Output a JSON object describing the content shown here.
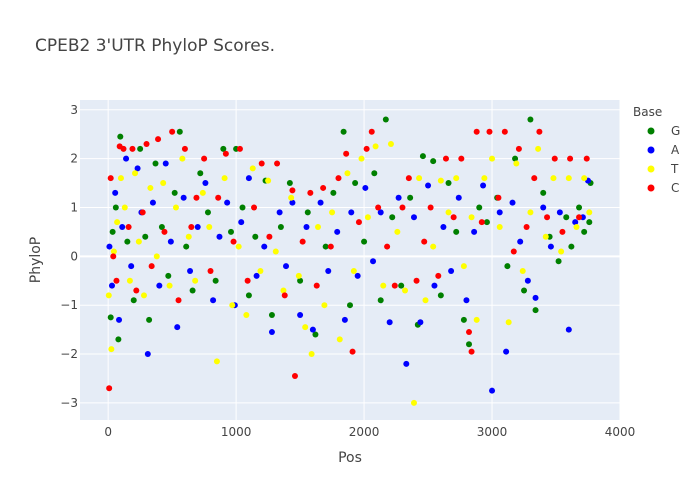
{
  "chart_data": {
    "type": "scatter",
    "title": "CPEB2 3'UTR PhyloP Scores.",
    "xlabel": "Pos",
    "ylabel": "PhyloP",
    "xlim": [
      -220,
      4000
    ],
    "ylim": [
      -3.35,
      3.2
    ],
    "x_ticks": [
      0,
      1000,
      2000,
      3000,
      4000
    ],
    "x_tick_labels": [
      "0",
      "1000",
      "2000",
      "3000",
      "4000"
    ],
    "y_ticks": [
      -3,
      -2,
      -1,
      0,
      1,
      2,
      3
    ],
    "y_tick_labels": [
      "−3",
      "−2",
      "−1",
      "0",
      "1",
      "2",
      "3"
    ],
    "grid": true,
    "plot_background": "#e5ecf6",
    "legend": {
      "title": "Base",
      "position": "right"
    },
    "series": [
      {
        "name": "G",
        "color": "#008000",
        "points": [
          [
            20,
            -1.25
          ],
          [
            35,
            0.5
          ],
          [
            60,
            1.0
          ],
          [
            80,
            -1.7
          ],
          [
            95,
            2.45
          ],
          [
            150,
            0.3
          ],
          [
            200,
            -0.9
          ],
          [
            250,
            2.2
          ],
          [
            290,
            0.4
          ],
          [
            320,
            -1.3
          ],
          [
            370,
            1.9
          ],
          [
            420,
            0.6
          ],
          [
            470,
            -0.4
          ],
          [
            520,
            1.3
          ],
          [
            560,
            2.55
          ],
          [
            610,
            0.2
          ],
          [
            660,
            -0.7
          ],
          [
            720,
            1.7
          ],
          [
            780,
            0.9
          ],
          [
            840,
            -0.5
          ],
          [
            900,
            2.2
          ],
          [
            960,
            0.5
          ],
          [
            1000,
            2.2
          ],
          [
            1050,
            1.0
          ],
          [
            1100,
            -0.8
          ],
          [
            1150,
            0.4
          ],
          [
            1230,
            1.55
          ],
          [
            1280,
            -1.2
          ],
          [
            1350,
            0.6
          ],
          [
            1420,
            1.5
          ],
          [
            1500,
            -0.5
          ],
          [
            1560,
            0.9
          ],
          [
            1620,
            -1.6
          ],
          [
            1700,
            0.2
          ],
          [
            1760,
            1.3
          ],
          [
            1840,
            2.55
          ],
          [
            1890,
            -1.0
          ],
          [
            1930,
            1.5
          ],
          [
            2000,
            0.3
          ],
          [
            2080,
            1.7
          ],
          [
            2130,
            -0.9
          ],
          [
            2170,
            2.8
          ],
          [
            2220,
            0.8
          ],
          [
            2290,
            -0.6
          ],
          [
            2360,
            1.2
          ],
          [
            2420,
            -1.4
          ],
          [
            2460,
            2.05
          ],
          [
            2540,
            1.95
          ],
          [
            2600,
            -0.8
          ],
          [
            2660,
            1.5
          ],
          [
            2720,
            0.5
          ],
          [
            2780,
            -1.3
          ],
          [
            2820,
            -1.8
          ],
          [
            2900,
            1.0
          ],
          [
            2960,
            0.7
          ],
          [
            3040,
            1.2
          ],
          [
            3120,
            -0.2
          ],
          [
            3180,
            2.0
          ],
          [
            3250,
            -0.7
          ],
          [
            3300,
            2.8
          ],
          [
            3340,
            -1.1
          ],
          [
            3400,
            1.3
          ],
          [
            3450,
            0.4
          ],
          [
            3520,
            -0.1
          ],
          [
            3580,
            0.8
          ],
          [
            3620,
            0.2
          ],
          [
            3680,
            1.0
          ],
          [
            3720,
            0.5
          ],
          [
            3760,
            0.7
          ],
          [
            3770,
            1.5
          ]
        ]
      },
      {
        "name": "A",
        "color": "#0000ff",
        "points": [
          [
            10,
            0.2
          ],
          [
            30,
            -0.6
          ],
          [
            55,
            1.3
          ],
          [
            85,
            -1.3
          ],
          [
            110,
            0.6
          ],
          [
            140,
            2.0
          ],
          [
            180,
            -0.2
          ],
          [
            230,
            1.8
          ],
          [
            260,
            0.9
          ],
          [
            310,
            -2.0
          ],
          [
            350,
            1.1
          ],
          [
            400,
            -0.6
          ],
          [
            450,
            1.9
          ],
          [
            490,
            0.3
          ],
          [
            540,
            -1.45
          ],
          [
            590,
            1.2
          ],
          [
            640,
            -0.3
          ],
          [
            700,
            0.6
          ],
          [
            760,
            1.5
          ],
          [
            820,
            -0.9
          ],
          [
            870,
            0.4
          ],
          [
            930,
            1.1
          ],
          [
            990,
            -1.0
          ],
          [
            1040,
            0.7
          ],
          [
            1100,
            1.6
          ],
          [
            1160,
            -0.4
          ],
          [
            1220,
            0.2
          ],
          [
            1280,
            -1.55
          ],
          [
            1340,
            0.9
          ],
          [
            1390,
            -0.2
          ],
          [
            1440,
            1.1
          ],
          [
            1500,
            -1.2
          ],
          [
            1550,
            0.6
          ],
          [
            1600,
            -1.5
          ],
          [
            1660,
            1.1
          ],
          [
            1720,
            -0.3
          ],
          [
            1790,
            0.5
          ],
          [
            1850,
            -1.3
          ],
          [
            1900,
            0.9
          ],
          [
            1950,
            -0.4
          ],
          [
            2010,
            1.4
          ],
          [
            2070,
            -0.1
          ],
          [
            2130,
            0.9
          ],
          [
            2200,
            -1.35
          ],
          [
            2270,
            1.2
          ],
          [
            2330,
            -2.2
          ],
          [
            2390,
            0.8
          ],
          [
            2440,
            -1.35
          ],
          [
            2500,
            1.45
          ],
          [
            2550,
            -0.6
          ],
          [
            2620,
            0.6
          ],
          [
            2680,
            -0.3
          ],
          [
            2740,
            1.2
          ],
          [
            2800,
            -0.9
          ],
          [
            2860,
            0.5
          ],
          [
            2930,
            1.45
          ],
          [
            3000,
            -2.75
          ],
          [
            3060,
            0.9
          ],
          [
            3110,
            -1.95
          ],
          [
            3160,
            1.1
          ],
          [
            3220,
            0.3
          ],
          [
            3280,
            -0.5
          ],
          [
            3340,
            -0.85
          ],
          [
            3400,
            1.0
          ],
          [
            3460,
            0.2
          ],
          [
            3530,
            0.9
          ],
          [
            3600,
            -1.5
          ],
          [
            3650,
            0.7
          ],
          [
            3710,
            0.8
          ],
          [
            3750,
            1.55
          ]
        ]
      },
      {
        "name": "T",
        "color": "#ffff00",
        "points": [
          [
            5,
            -0.8
          ],
          [
            25,
            -1.9
          ],
          [
            45,
            0.1
          ],
          [
            70,
            0.7
          ],
          [
            100,
            1.6
          ],
          [
            130,
            1.0
          ],
          [
            170,
            -0.5
          ],
          [
            210,
            1.7
          ],
          [
            240,
            0.3
          ],
          [
            280,
            -0.8
          ],
          [
            330,
            1.4
          ],
          [
            380,
            0.0
          ],
          [
            430,
            1.5
          ],
          [
            480,
            -0.6
          ],
          [
            530,
            1.0
          ],
          [
            580,
            2.0
          ],
          [
            630,
            0.4
          ],
          [
            680,
            -0.5
          ],
          [
            740,
            1.3
          ],
          [
            790,
            0.6
          ],
          [
            850,
            -2.15
          ],
          [
            910,
            1.6
          ],
          [
            970,
            -1.0
          ],
          [
            1020,
            0.2
          ],
          [
            1080,
            -1.2
          ],
          [
            1130,
            1.8
          ],
          [
            1190,
            -0.3
          ],
          [
            1250,
            1.55
          ],
          [
            1310,
            0.1
          ],
          [
            1370,
            -0.7
          ],
          [
            1430,
            1.2
          ],
          [
            1490,
            -0.4
          ],
          [
            1540,
            -1.45
          ],
          [
            1590,
            -2.0
          ],
          [
            1640,
            0.6
          ],
          [
            1690,
            -1.0
          ],
          [
            1750,
            0.9
          ],
          [
            1810,
            -1.7
          ],
          [
            1870,
            1.7
          ],
          [
            1920,
            -0.3
          ],
          [
            1980,
            2.0
          ],
          [
            2030,
            0.8
          ],
          [
            2090,
            2.25
          ],
          [
            2150,
            -0.6
          ],
          [
            2210,
            2.3
          ],
          [
            2260,
            0.5
          ],
          [
            2320,
            -0.7
          ],
          [
            2390,
            -3.0
          ],
          [
            2430,
            1.6
          ],
          [
            2480,
            -0.9
          ],
          [
            2540,
            0.2
          ],
          [
            2600,
            1.55
          ],
          [
            2660,
            0.9
          ],
          [
            2720,
            1.6
          ],
          [
            2780,
            -0.2
          ],
          [
            2840,
            0.8
          ],
          [
            2880,
            -1.3
          ],
          [
            2940,
            1.6
          ],
          [
            3000,
            2.0
          ],
          [
            3060,
            0.6
          ],
          [
            3130,
            -1.35
          ],
          [
            3190,
            1.9
          ],
          [
            3240,
            -0.3
          ],
          [
            3300,
            0.9
          ],
          [
            3360,
            2.2
          ],
          [
            3420,
            0.4
          ],
          [
            3480,
            1.6
          ],
          [
            3540,
            0.1
          ],
          [
            3600,
            1.6
          ],
          [
            3660,
            0.6
          ],
          [
            3720,
            1.6
          ],
          [
            3760,
            0.9
          ]
        ]
      },
      {
        "name": "C",
        "color": "#ff0000",
        "points": [
          [
            8,
            -2.7
          ],
          [
            20,
            1.6
          ],
          [
            40,
            0.0
          ],
          [
            65,
            -0.5
          ],
          [
            90,
            2.25
          ],
          [
            120,
            2.2
          ],
          [
            160,
            0.6
          ],
          [
            190,
            2.2
          ],
          [
            220,
            -0.7
          ],
          [
            270,
            0.9
          ],
          [
            300,
            2.3
          ],
          [
            340,
            -0.2
          ],
          [
            390,
            2.4
          ],
          [
            440,
            0.5
          ],
          [
            500,
            2.55
          ],
          [
            550,
            -0.9
          ],
          [
            600,
            2.2
          ],
          [
            650,
            0.6
          ],
          [
            690,
            1.2
          ],
          [
            750,
            2.0
          ],
          [
            800,
            -0.3
          ],
          [
            860,
            1.2
          ],
          [
            920,
            2.1
          ],
          [
            980,
            0.3
          ],
          [
            1030,
            2.2
          ],
          [
            1090,
            -0.5
          ],
          [
            1140,
            1.0
          ],
          [
            1200,
            1.9
          ],
          [
            1260,
            0.4
          ],
          [
            1320,
            1.9
          ],
          [
            1380,
            -0.8
          ],
          [
            1440,
            1.35
          ],
          [
            1460,
            -2.45
          ],
          [
            1520,
            0.3
          ],
          [
            1580,
            1.3
          ],
          [
            1630,
            -0.6
          ],
          [
            1680,
            1.4
          ],
          [
            1740,
            0.2
          ],
          [
            1800,
            1.6
          ],
          [
            1860,
            2.1
          ],
          [
            1910,
            -1.95
          ],
          [
            1960,
            0.7
          ],
          [
            2020,
            2.2
          ],
          [
            2060,
            2.55
          ],
          [
            2110,
            1.0
          ],
          [
            2180,
            0.2
          ],
          [
            2240,
            -0.6
          ],
          [
            2300,
            1.0
          ],
          [
            2350,
            1.6
          ],
          [
            2410,
            -0.5
          ],
          [
            2470,
            0.3
          ],
          [
            2520,
            1.0
          ],
          [
            2580,
            -0.4
          ],
          [
            2640,
            2.0
          ],
          [
            2700,
            0.8
          ],
          [
            2760,
            2.0
          ],
          [
            2820,
            -1.55
          ],
          [
            2840,
            -1.95
          ],
          [
            2880,
            2.55
          ],
          [
            2920,
            0.7
          ],
          [
            2980,
            2.55
          ],
          [
            3050,
            1.2
          ],
          [
            3100,
            2.55
          ],
          [
            3170,
            0.1
          ],
          [
            3210,
            2.2
          ],
          [
            3270,
            0.6
          ],
          [
            3330,
            1.6
          ],
          [
            3370,
            2.55
          ],
          [
            3430,
            0.8
          ],
          [
            3490,
            2.0
          ],
          [
            3550,
            0.5
          ],
          [
            3610,
            2.0
          ],
          [
            3680,
            0.8
          ],
          [
            3740,
            2.0
          ]
        ]
      }
    ]
  }
}
